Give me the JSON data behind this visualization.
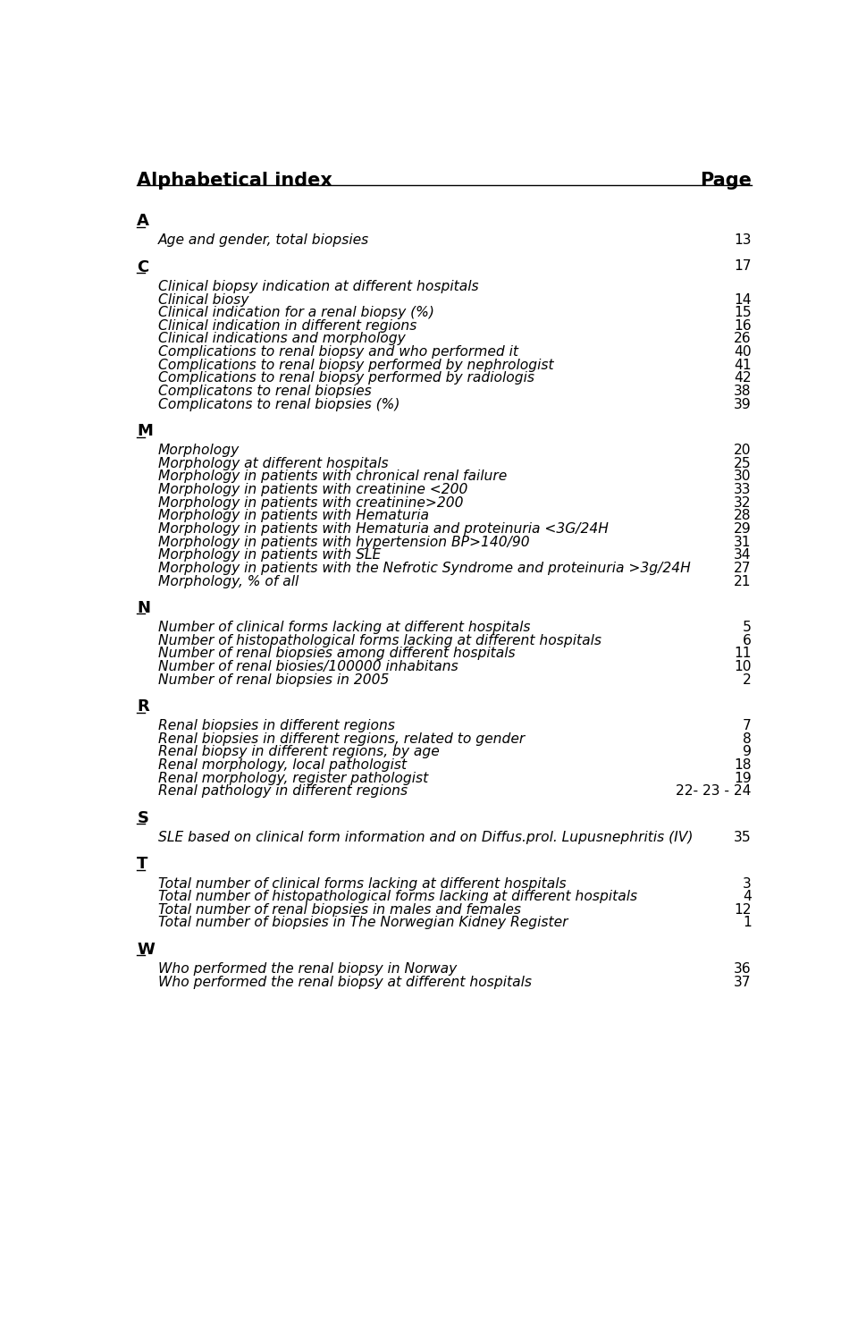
{
  "title": "Alphabetical index",
  "page_label": "Page",
  "background_color": "#ffffff",
  "text_color": "#000000",
  "sections": [
    {
      "letter": "A",
      "letter_page": null,
      "entries": [
        {
          "text": "Age and gender, total biopsies",
          "page": "13"
        }
      ]
    },
    {
      "letter": "C",
      "letter_page": "17",
      "entries": [
        {
          "text": "Clinical biopsy indication at different hospitals",
          "page": ""
        },
        {
          "text": "Clinical biosy",
          "page": "14"
        },
        {
          "text": "Clinical indication for a renal biopsy (%)",
          "page": "15"
        },
        {
          "text": "Clinical indication in different regions",
          "page": "16"
        },
        {
          "text": "Clinical indications and morphology",
          "page": "26"
        },
        {
          "text": "Complications to renal biopsy and who performed it",
          "page": "40"
        },
        {
          "text": "Complications to renal biopsy performed by nephrologist",
          "page": "41"
        },
        {
          "text": "Complications to renal biopsy performed by radiologis",
          "page": "42"
        },
        {
          "text": "Complicatons to renal biopsies",
          "page": "38"
        },
        {
          "text": "Complicatons to renal biopsies (%)",
          "page": "39"
        }
      ]
    },
    {
      "letter": "M",
      "letter_page": null,
      "entries": [
        {
          "text": "Morphology",
          "page": "20"
        },
        {
          "text": "Morphology at different hospitals",
          "page": "25"
        },
        {
          "text": "Morphology in patients with chronical renal failure",
          "page": "30"
        },
        {
          "text": "Morphology in patients with creatinine <200",
          "page": "33"
        },
        {
          "text": "Morphology in patients with creatinine>200",
          "page": "32"
        },
        {
          "text": "Morphology in patients with Hematuria",
          "page": "28"
        },
        {
          "text": "Morphology in patients with Hematuria and proteinuria <3G/24H",
          "page": "29"
        },
        {
          "text": "Morphology in patients with hypertension BP>140/90",
          "page": "31"
        },
        {
          "text": "Morphology in patients with SLE",
          "page": "34"
        },
        {
          "text": "Morphology in patients with the Nefrotic Syndrome and proteinuria >3g/24H",
          "page": "27"
        },
        {
          "text": "Morphology, % of all",
          "page": "21"
        }
      ]
    },
    {
      "letter": "N",
      "letter_page": null,
      "entries": [
        {
          "text": "Number of clinical forms lacking at different hospitals",
          "page": "5"
        },
        {
          "text": "Number of histopathological forms lacking at different hospitals",
          "page": "6"
        },
        {
          "text": "Number of renal biopsies among different hospitals",
          "page": "11"
        },
        {
          "text": "Number of renal biosies/100000 inhabitans",
          "page": "10"
        },
        {
          "text": "Number of renal biopsies in 2005",
          "page": "2"
        }
      ]
    },
    {
      "letter": "R",
      "letter_page": null,
      "entries": [
        {
          "text": "Renal biopsies in different regions",
          "page": "7"
        },
        {
          "text": "Renal biopsies in different regions, related to gender",
          "page": "8"
        },
        {
          "text": "Renal biopsy in different regions, by age",
          "page": "9"
        },
        {
          "text": "Renal morphology, local pathologist",
          "page": "18"
        },
        {
          "text": "Renal morphology, register pathologist",
          "page": "19"
        },
        {
          "text": "Renal pathology in different regions",
          "page": "22- 23 - 24"
        }
      ]
    },
    {
      "letter": "S",
      "letter_page": null,
      "entries": [
        {
          "text": "SLE based on clinical form information and on Diffus.prol. Lupusnephritis (IV)",
          "page": "35"
        }
      ]
    },
    {
      "letter": "T",
      "letter_page": null,
      "entries": [
        {
          "text": "Total number of clinical forms lacking at different hospitals",
          "page": "3"
        },
        {
          "text": "Total number of histopathological forms lacking at different hospitals",
          "page": "4"
        },
        {
          "text": "Total number of renal biopsies in males and females",
          "page": "12"
        },
        {
          "text": "Total number of biopsies in The Norwegian Kidney Register",
          "page": "1"
        }
      ]
    },
    {
      "letter": "W",
      "letter_page": null,
      "entries": [
        {
          "text": "Who performed the renal biopsy in Norway",
          "page": "36"
        },
        {
          "text": "Who performed the renal biopsy at different hospitals",
          "page": "37"
        }
      ]
    }
  ]
}
